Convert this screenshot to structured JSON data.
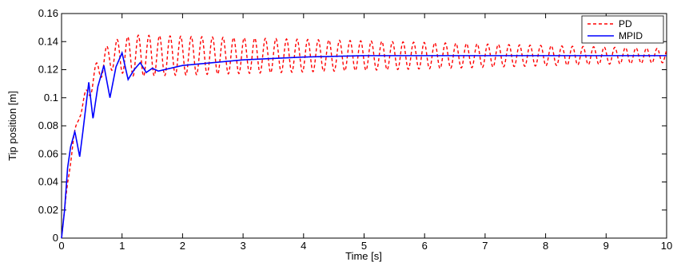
{
  "chart_data": {
    "type": "line",
    "title": "",
    "xlabel": "Time [s]",
    "ylabel": "Tip position [m]",
    "xlim": [
      0,
      10
    ],
    "ylim": [
      0,
      0.16
    ],
    "xticks": [
      "0",
      "1",
      "2",
      "3",
      "4",
      "5",
      "6",
      "7",
      "8",
      "9",
      "10"
    ],
    "yticks": [
      "0",
      "0.02",
      "0.04",
      "0.06",
      "0.08",
      "0.1",
      "0.12",
      "0.14",
      "0.16"
    ],
    "grid": false,
    "legend_position": "top-right",
    "series": [
      {
        "name": "PD",
        "color": "#ff0000",
        "style": "dashed",
        "description": "sustained oscillation about 0.13 after initial rise",
        "x": [
          0,
          0.1,
          0.2,
          0.3,
          0.4,
          0.5,
          0.6,
          0.7,
          0.8,
          0.9,
          1.0,
          1.2,
          1.5,
          2.0,
          3.0,
          4.0,
          5.0,
          6.0,
          7.0,
          8.0,
          9.0,
          10.0
        ],
        "y": [
          0,
          0.04,
          0.07,
          0.09,
          0.1,
          0.11,
          0.12,
          0.125,
          0.13,
          0.13,
          0.13,
          0.13,
          0.13,
          0.13,
          0.13,
          0.13,
          0.13,
          0.13,
          0.13,
          0.13,
          0.13,
          0.13
        ],
        "oscillation_period": 0.175,
        "oscillation_amplitude_start": 0.016,
        "oscillation_amplitude_end": 0.005
      },
      {
        "name": "MPID",
        "color": "#0000ff",
        "style": "solid",
        "x": [
          0,
          0.05,
          0.1,
          0.15,
          0.22,
          0.3,
          0.35,
          0.45,
          0.52,
          0.6,
          0.7,
          0.8,
          0.9,
          1.0,
          1.1,
          1.2,
          1.3,
          1.4,
          1.5,
          1.6,
          1.7,
          1.8,
          2.0,
          2.5,
          3.0,
          3.5,
          4.0,
          4.5,
          5.0,
          6.0,
          7.0,
          8.0,
          9.0,
          10.0
        ],
        "y": [
          0,
          0.02,
          0.05,
          0.065,
          0.076,
          0.058,
          0.075,
          0.111,
          0.085,
          0.108,
          0.123,
          0.1,
          0.122,
          0.132,
          0.113,
          0.12,
          0.125,
          0.118,
          0.121,
          0.119,
          0.12,
          0.121,
          0.123,
          0.125,
          0.127,
          0.128,
          0.129,
          0.1295,
          0.13,
          0.13,
          0.13,
          0.13,
          0.13,
          0.13
        ]
      }
    ]
  }
}
